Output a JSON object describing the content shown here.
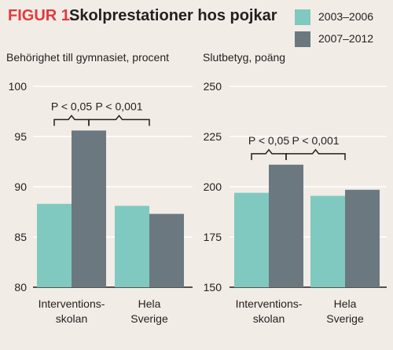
{
  "figure": {
    "label": "FIGUR 1.",
    "title": "Skolprestationer hos pojkar"
  },
  "legend": [
    {
      "name": "2003–2006",
      "color": "#7fc9c0"
    },
    {
      "name": "2007–2012",
      "color": "#6b7880"
    }
  ],
  "chart_data": [
    {
      "type": "bar",
      "title": "",
      "ylabel": "Behörighet till gymnasiet, procent",
      "xlabel": "",
      "ylim": [
        80,
        100
      ],
      "yticks": [
        80,
        85,
        90,
        95,
        100
      ],
      "categories": [
        [
          "Interventions-",
          "skolan"
        ],
        [
          "Hela",
          "Sverige"
        ]
      ],
      "series": [
        {
          "name": "2003–2006",
          "values": [
            88.3,
            88.1
          ]
        },
        {
          "name": "2007–2012",
          "values": [
            95.6,
            87.3
          ]
        }
      ],
      "annotations": [
        "P < 0,05",
        "P < 0,001"
      ],
      "grid": true
    },
    {
      "type": "bar",
      "title": "",
      "ylabel": "Slutbetyg, poäng",
      "xlabel": "",
      "ylim": [
        150,
        250
      ],
      "yticks": [
        150,
        175,
        200,
        225,
        250
      ],
      "categories": [
        [
          "Interventions-",
          "skolan"
        ],
        [
          "Hela",
          "Sverige"
        ]
      ],
      "series": [
        {
          "name": "2003–2006",
          "values": [
            197,
            195.5
          ]
        },
        {
          "name": "2007–2012",
          "values": [
            211,
            198.5
          ]
        }
      ],
      "annotations": [
        "P < 0,05",
        "P < 0,001"
      ],
      "grid": true
    }
  ]
}
